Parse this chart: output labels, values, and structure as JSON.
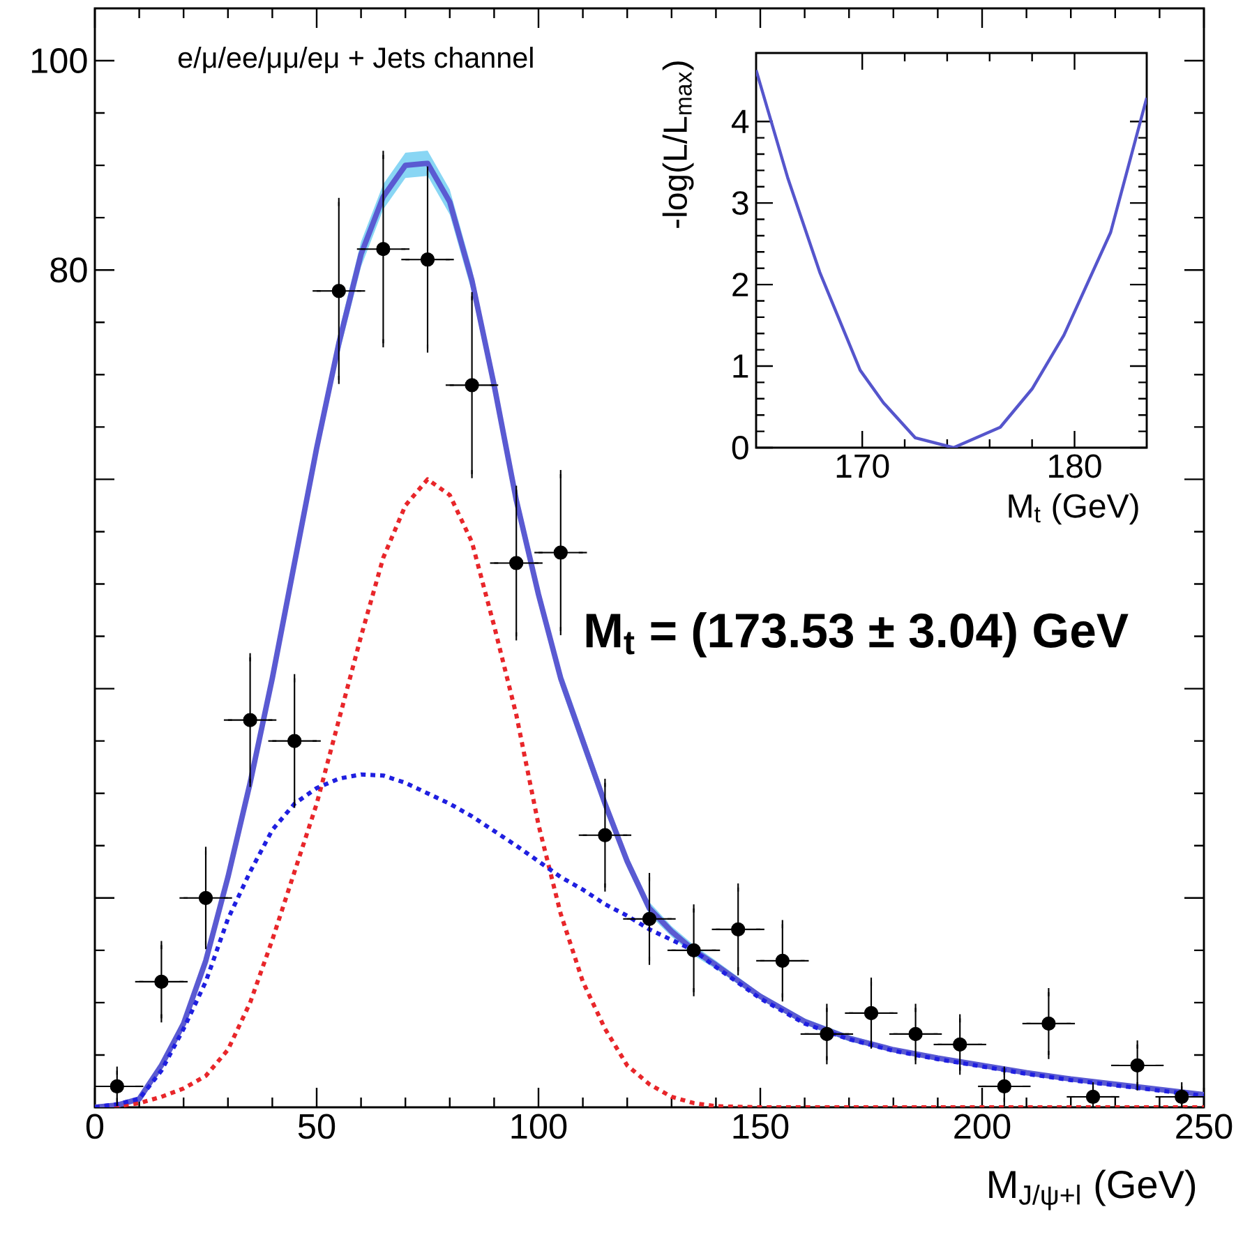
{
  "chart_data": [
    {
      "type": "scatter",
      "xlabel": "M$_{J/ψ+l}$ (GeV)",
      "annotations": [
        "e/μ/ee/μμ/eμ + Jets channel",
        "M$_{t}$ = (173.53 ± 3.04) GeV"
      ],
      "xlim": [
        0,
        250
      ],
      "ylim": [
        0,
        105
      ],
      "xticks": [
        0,
        50,
        100,
        150,
        200,
        250
      ],
      "yticks": [
        {
          "value": 0,
          "label": null
        },
        {
          "value": 20,
          "label": null
        },
        {
          "value": 40,
          "label": null
        },
        {
          "value": 60,
          "label": null
        },
        80,
        100
      ],
      "series": [
        {
          "type": "line",
          "color": "#5a5ad2",
          "line_style": "solid",
          "x": [
            0,
            5,
            10,
            15,
            20,
            25,
            30,
            35,
            40,
            45,
            50,
            55,
            60,
            65,
            70,
            75,
            80,
            85,
            90,
            95,
            100,
            105,
            110,
            115,
            120,
            125,
            130,
            135,
            140,
            150,
            160,
            170,
            180,
            190,
            200,
            210,
            220,
            230,
            240,
            250
          ],
          "values": [
            0,
            0.2,
            0.8,
            4,
            8,
            14,
            22,
            31,
            41,
            52,
            63,
            73,
            81.5,
            87,
            90,
            90.2,
            86.5,
            79,
            69,
            58,
            49,
            41,
            35,
            29,
            23.5,
            19,
            16.8,
            15,
            13.6,
            10.6,
            8.2,
            6.6,
            5.5,
            4.7,
            4,
            3.3,
            2.7,
            2.2,
            1.7,
            1.2
          ],
          "lower": [
            0,
            0.1,
            0.6,
            3.6,
            7.5,
            13.4,
            21.3,
            30.2,
            40.1,
            51,
            62,
            71.9,
            80.3,
            85.8,
            88.8,
            89,
            85.3,
            77.9,
            68,
            57,
            48.1,
            40.2,
            34.2,
            28.3,
            22.9,
            18.4,
            16.3,
            14.5,
            13.2,
            10.3,
            7.9,
            6.3,
            5.3,
            4.5,
            3.8,
            3.1,
            2.5,
            2.0,
            1.5,
            1.0
          ],
          "upper": [
            0,
            0.3,
            1.0,
            4.4,
            8.5,
            14.6,
            22.7,
            31.8,
            41.9,
            53,
            64,
            74.1,
            82.7,
            88.2,
            91.2,
            91.4,
            87.7,
            80.1,
            70,
            59,
            49.9,
            41.8,
            35.8,
            29.7,
            24.1,
            19.6,
            17.3,
            15.5,
            14,
            10.9,
            8.5,
            6.9,
            5.7,
            4.9,
            4.2,
            3.5,
            2.9,
            2.4,
            1.9,
            1.4
          ]
        },
        {
          "type": "line",
          "color": "#e8262a",
          "line_style": "dotted",
          "x": [
            0,
            5,
            10,
            15,
            20,
            25,
            30,
            35,
            40,
            45,
            50,
            55,
            60,
            65,
            70,
            75,
            80,
            85,
            90,
            95,
            100,
            105,
            110,
            115,
            120,
            125,
            130,
            135,
            140,
            150,
            160,
            170,
            180,
            190,
            200,
            210,
            220,
            230,
            240,
            250
          ],
          "values": [
            0,
            0.1,
            0.4,
            1,
            1.8,
            3,
            5.5,
            10,
            16,
            22.5,
            29,
            37,
            45,
            52.5,
            57.5,
            60,
            58.5,
            54,
            46,
            37.5,
            27,
            18.5,
            12,
            7.5,
            4,
            2.2,
            1,
            0.4,
            0.1,
            0,
            0,
            0,
            0,
            0,
            0,
            0,
            0,
            0,
            0,
            0
          ]
        },
        {
          "type": "line",
          "color": "#1f1fe0",
          "line_style": "dotted",
          "x": [
            0,
            5,
            10,
            15,
            20,
            25,
            30,
            35,
            40,
            45,
            50,
            55,
            60,
            65,
            70,
            75,
            80,
            85,
            90,
            95,
            100,
            105,
            110,
            115,
            120,
            125,
            130,
            135,
            140,
            150,
            160,
            170,
            180,
            190,
            200,
            210,
            220,
            230,
            240,
            250
          ],
          "values": [
            0,
            0.3,
            0.8,
            3.5,
            7.5,
            12,
            18,
            22.5,
            26.5,
            29,
            30.5,
            31.4,
            31.8,
            31.7,
            31,
            30,
            29,
            27.8,
            26.4,
            25,
            23.5,
            22,
            20.8,
            19.4,
            18.3,
            17,
            16,
            15,
            13.4,
            10.4,
            8,
            6.5,
            5.4,
            4.6,
            3.9,
            3.2,
            2.6,
            2.1,
            1.6,
            1.1
          ]
        },
        {
          "type": "scatter",
          "color": "#000000",
          "marker": "circle",
          "x": [
            5,
            15,
            25,
            35,
            45,
            55,
            65,
            75,
            85,
            95,
            105,
            115,
            125,
            135,
            145,
            155,
            165,
            175,
            185,
            195,
            205,
            215,
            225,
            235,
            245
          ],
          "values": [
            2,
            12,
            20,
            37,
            35,
            78,
            82,
            81,
            69,
            52,
            53,
            26,
            18,
            15,
            17,
            14,
            7,
            9,
            7,
            6,
            2,
            8,
            1,
            4,
            1
          ],
          "errors": [
            1.5,
            3.5,
            4.5,
            6,
            6,
            8.5,
            9,
            8.5,
            8.5,
            7,
            7.5,
            5,
            4,
            4,
            4,
            3.5,
            2.5,
            3,
            2.5,
            2.5,
            1.5,
            3,
            1,
            2,
            1
          ],
          "xerrors": [
            5,
            5,
            5,
            5,
            5,
            5,
            5,
            5,
            5,
            5,
            5,
            5,
            5,
            5,
            5,
            5,
            5,
            5,
            5,
            5,
            5,
            5,
            5,
            5,
            5
          ]
        }
      ]
    },
    {
      "type": "line",
      "xlabel": "M$_{t}$ (GeV)",
      "ylabel": "-log(L/L$_{max}$)",
      "xlim": [
        165,
        183.4
      ],
      "ylim": [
        0,
        4.84
      ],
      "xticks": [
        170,
        180
      ],
      "yticks": [
        0,
        1,
        2,
        3,
        4
      ],
      "x": [
        165,
        166.5,
        168,
        169.9,
        171,
        172.5,
        174.3,
        176.5,
        178,
        179.5,
        181.7,
        183.4
      ],
      "series": [
        {
          "color": "#5555cc",
          "line_style": "solid",
          "values": [
            4.63,
            3.3,
            2.15,
            0.95,
            0.55,
            0.12,
            0,
            0.25,
            0.72,
            1.38,
            2.64,
            4.29
          ]
        }
      ]
    }
  ]
}
